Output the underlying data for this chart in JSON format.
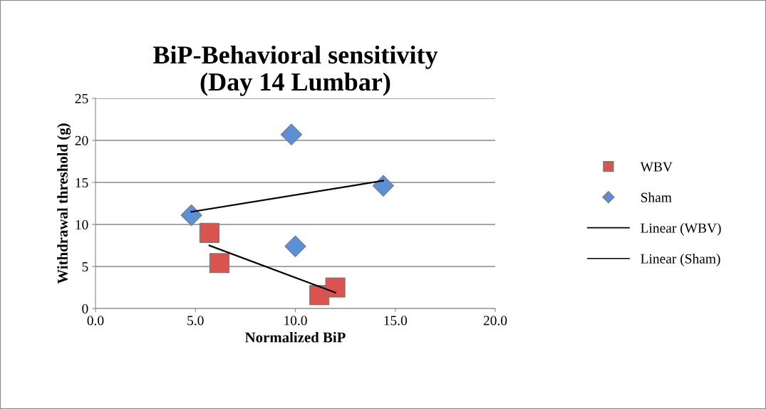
{
  "chart_data": {
    "type": "scatter",
    "title": "BiP-Behavioral sensitivity\n(Day 14 Lumbar)",
    "xlabel": "Normalized BiP",
    "ylabel": "Withdrawal threshold (g)",
    "series": [
      {
        "name": "WBV",
        "marker": "square",
        "color": "#d9534f",
        "x": [
          5.7,
          6.2,
          11.2,
          12.0
        ],
        "values": [
          9.0,
          5.4,
          1.6,
          2.5
        ]
      },
      {
        "name": "Sham",
        "marker": "diamond",
        "color": "#5b8fd6",
        "x": [
          9.8,
          14.4,
          4.8,
          10.0
        ],
        "values": [
          20.7,
          14.6,
          11.1,
          7.4
        ]
      },
      {
        "name": "Linear (WBV)",
        "type": "line",
        "color": "#000000",
        "x": [
          5.7,
          12.0
        ],
        "values": [
          7.5,
          1.9
        ]
      },
      {
        "name": "Linear (Sham)",
        "type": "line",
        "color": "#000000",
        "x": [
          4.8,
          14.4
        ],
        "values": [
          11.5,
          15.2
        ]
      }
    ],
    "xlim": [
      0,
      20
    ],
    "xticks": [
      {
        "value": 0,
        "label": "0.0"
      },
      {
        "value": 5,
        "label": "5.0"
      },
      {
        "value": 10,
        "label": "10.0"
      },
      {
        "value": 15,
        "label": "15.0"
      },
      {
        "value": 20,
        "label": "20.0"
      }
    ],
    "ylim": [
      0,
      25
    ],
    "yticks": [
      0,
      5,
      10,
      15,
      20,
      25
    ],
    "grid": "y",
    "legend": "right"
  }
}
